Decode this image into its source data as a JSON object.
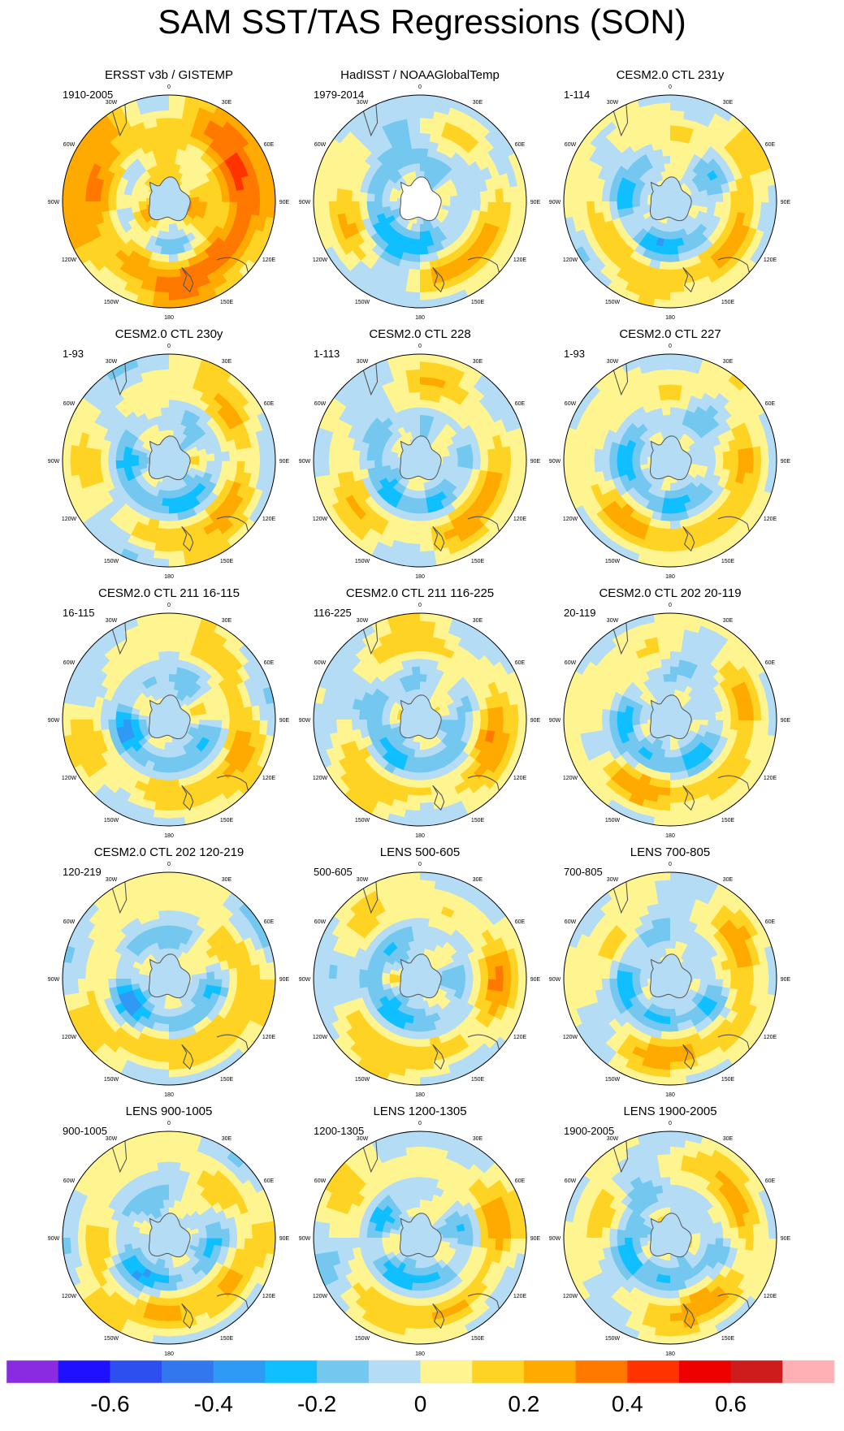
{
  "title": "SAM SST/TAS Regressions (SON)",
  "chart_data": {
    "type": "heatmap",
    "projection": "south-polar-stereographic",
    "variable": "SST/TAS regression on SAM index, SON",
    "lon_labels": [
      "0",
      "30E",
      "60E",
      "90E",
      "120E",
      "150E",
      "180",
      "150W",
      "120W",
      "90W",
      "60W",
      "30W"
    ],
    "colorbar": {
      "levels": [
        -0.7,
        -0.6,
        -0.5,
        -0.4,
        -0.3,
        -0.2,
        -0.1,
        0,
        0.1,
        0.2,
        0.3,
        0.4,
        0.5,
        0.6,
        0.7
      ],
      "tick_labels": [
        "-0.6",
        "-0.4",
        "-0.2",
        "0",
        "0.2",
        "0.4",
        "0.6"
      ],
      "tick_values": [
        -0.6,
        -0.4,
        -0.2,
        0,
        0.2,
        0.4,
        0.6
      ],
      "colors": [
        "#8a2be2",
        "#1f10ff",
        "#2e4ff0",
        "#3377ee",
        "#2f9af5",
        "#10bfff",
        "#74c8f0",
        "#b4dcf5",
        "#fff590",
        "#ffd324",
        "#ffaa00",
        "#ff7800",
        "#ff3300",
        "#ee0000",
        "#cc1c1c",
        "#ffb0b4"
      ]
    },
    "panels": [
      {
        "title": "ERSST v3b / GISTEMP",
        "period": "1910-2005",
        "pattern": 0
      },
      {
        "title": "HadISST / NOAAGlobalTemp",
        "period": "1979-2014",
        "pattern": 1
      },
      {
        "title": "CESM2.0 CTL 231y",
        "period": "1-114",
        "pattern": 2
      },
      {
        "title": "CESM2.0 CTL 230y",
        "period": "1-93",
        "pattern": 3
      },
      {
        "title": "CESM2.0 CTL 228",
        "period": "1-113",
        "pattern": 4
      },
      {
        "title": "CESM2.0 CTL 227",
        "period": "1-93",
        "pattern": 5
      },
      {
        "title": "CESM2.0 CTL 211 16-115",
        "period": "16-115",
        "pattern": 6
      },
      {
        "title": "CESM2.0 CTL 211 116-225",
        "period": "116-225",
        "pattern": 7
      },
      {
        "title": "CESM2.0 CTL 202 20-119",
        "period": "20-119",
        "pattern": 8
      },
      {
        "title": "CESM2.0 CTL 202 120-219",
        "period": "120-219",
        "pattern": 9
      },
      {
        "title": "LENS 500-605",
        "period": "500-605",
        "pattern": 10
      },
      {
        "title": "LENS 700-805",
        "period": "700-805",
        "pattern": 11
      },
      {
        "title": "LENS 900-1005",
        "period": "900-1005",
        "pattern": 12
      },
      {
        "title": "LENS 1200-1305",
        "period": "1200-1305",
        "pattern": 13
      },
      {
        "title": "LENS 1900-2005",
        "period": "1900-2005",
        "pattern": 14
      }
    ]
  }
}
